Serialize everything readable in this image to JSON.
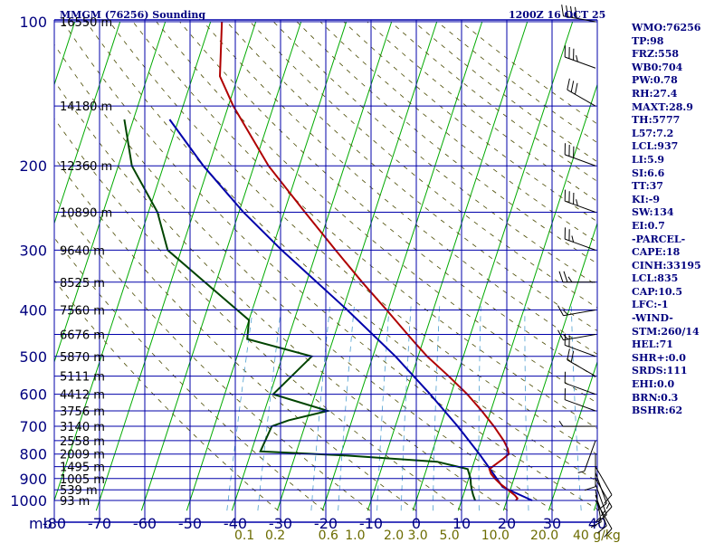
{
  "chart_data": {
    "type": "skew-t sounding",
    "title": "MMGM (76256) Sounding",
    "time_label": "1200Z 16 OCT 25",
    "pressure_ticks": [
      100,
      200,
      300,
      400,
      500,
      600,
      700,
      800,
      900,
      1000
    ],
    "temperature_ticks": [
      -80,
      -70,
      -60,
      -50,
      -40,
      -30,
      -20,
      -10,
      0,
      10,
      20,
      30,
      40
    ],
    "temperature_tick_labels": [
      "-80",
      "-70",
      "-60",
      "-50",
      "-40",
      "-30",
      "-20",
      "-10",
      "0",
      "10",
      "20",
      "30",
      "40"
    ],
    "axis_unit_label": "mb",
    "mixing_ratio_labels": [
      "0.1",
      "0.2",
      "0.6",
      "1.0",
      "2.0",
      "3.0",
      "5.0",
      "10.0",
      "20.0",
      "40 g/kg"
    ],
    "height_labels": [
      {
        "p": 100,
        "text": "16550 m"
      },
      {
        "p": 150,
        "text": "14180 m"
      },
      {
        "p": 200,
        "text": "12360 m"
      },
      {
        "p": 250,
        "text": "10890 m"
      },
      {
        "p": 300,
        "text": "9640 m"
      },
      {
        "p": 350,
        "text": "8525 m"
      },
      {
        "p": 400,
        "text": "7560 m"
      },
      {
        "p": 450,
        "text": "6676 m"
      },
      {
        "p": 500,
        "text": "5870 m"
      },
      {
        "p": 550,
        "text": "5111 m"
      },
      {
        "p": 600,
        "text": "4412 m"
      },
      {
        "p": 650,
        "text": "3756 m"
      },
      {
        "p": 700,
        "text": "3140 m"
      },
      {
        "p": 750,
        "text": "2558 m"
      },
      {
        "p": 800,
        "text": "2009 m"
      },
      {
        "p": 850,
        "text": "1495 m"
      },
      {
        "p": 900,
        "text": "1005 m"
      },
      {
        "p": 950,
        "text": "539 m"
      },
      {
        "p": 1000,
        "text": "93 m"
      }
    ],
    "temperature_profile": [
      {
        "p": 1000,
        "t": 22
      },
      {
        "p": 990,
        "t": 22.2
      },
      {
        "p": 975,
        "t": 21.4
      },
      {
        "p": 950,
        "t": 19.5
      },
      {
        "p": 925,
        "t": 17.5
      },
      {
        "p": 900,
        "t": 15.8
      },
      {
        "p": 880,
        "t": 14.6
      },
      {
        "p": 860,
        "t": 13.9
      },
      {
        "p": 850,
        "t": 14.4
      },
      {
        "p": 820,
        "t": 16.1
      },
      {
        "p": 800,
        "t": 17.1
      },
      {
        "p": 780,
        "t": 16.5
      },
      {
        "p": 750,
        "t": 15.0
      },
      {
        "p": 700,
        "t": 11.8
      },
      {
        "p": 650,
        "t": 8.0
      },
      {
        "p": 600,
        "t": 3.6
      },
      {
        "p": 550,
        "t": -1.8
      },
      {
        "p": 500,
        "t": -8.0
      },
      {
        "p": 470,
        "t": -11.5
      },
      {
        "p": 450,
        "t": -13.9
      },
      {
        "p": 400,
        "t": -20.3
      },
      {
        "p": 350,
        "t": -27.7
      },
      {
        "p": 300,
        "t": -35.9
      },
      {
        "p": 250,
        "t": -45.4
      },
      {
        "p": 200,
        "t": -56.8
      },
      {
        "p": 150,
        "t": -68.9
      },
      {
        "p": 130,
        "t": -74.0
      },
      {
        "p": 100,
        "t": -77.5
      }
    ],
    "dewpoint_profile": [
      {
        "p": 1000,
        "td": 13
      },
      {
        "p": 975,
        "td": 12.2
      },
      {
        "p": 950,
        "td": 11.5
      },
      {
        "p": 925,
        "td": 10.9
      },
      {
        "p": 900,
        "td": 10.4
      },
      {
        "p": 860,
        "td": 9.1
      },
      {
        "p": 830,
        "td": 1.8
      },
      {
        "p": 805,
        "td": -19.0
      },
      {
        "p": 790,
        "td": -38.0
      },
      {
        "p": 700,
        "td": -37.3
      },
      {
        "p": 680,
        "td": -34.0
      },
      {
        "p": 650,
        "td": -26.0
      },
      {
        "p": 600,
        "td": -39.3
      },
      {
        "p": 500,
        "td": -33.5
      },
      {
        "p": 460,
        "td": -49.0
      },
      {
        "p": 420,
        "td": -50.0
      },
      {
        "p": 300,
        "td": -73.0
      },
      {
        "p": 250,
        "td": -78.0
      },
      {
        "p": 200,
        "td": -87.0
      },
      {
        "p": 160,
        "td": -92.0
      }
    ],
    "parcel_profile": [
      {
        "p": 1000,
        "t": 25.6
      },
      {
        "p": 937,
        "t": 18.1
      },
      {
        "p": 900,
        "t": 16.2
      },
      {
        "p": 850,
        "t": 13.5
      },
      {
        "p": 800,
        "t": 10.6
      },
      {
        "p": 700,
        "t": 3.8
      },
      {
        "p": 600,
        "t": -4.6
      },
      {
        "p": 500,
        "t": -15.0
      },
      {
        "p": 400,
        "t": -29.0
      },
      {
        "p": 300,
        "t": -47.8
      },
      {
        "p": 250,
        "t": -59.0
      },
      {
        "p": 200,
        "t": -71.2
      },
      {
        "p": 160,
        "t": -82.0
      }
    ],
    "wind_profile": [
      {
        "p": 1000,
        "dir": 150,
        "spd": 10
      },
      {
        "p": 975,
        "dir": 160,
        "spd": 10
      },
      {
        "p": 950,
        "dir": 170,
        "spd": 15
      },
      {
        "p": 925,
        "dir": 160,
        "spd": 15
      },
      {
        "p": 900,
        "dir": 150,
        "spd": 15
      },
      {
        "p": 875,
        "dir": 160,
        "spd": 10
      },
      {
        "p": 850,
        "dir": 150,
        "spd": 10
      },
      {
        "p": 800,
        "dir": 180,
        "spd": 10
      },
      {
        "p": 750,
        "dir": 200,
        "spd": 5
      },
      {
        "p": 700,
        "dir": 270,
        "spd": 5
      },
      {
        "p": 650,
        "dir": 290,
        "spd": 10
      },
      {
        "p": 600,
        "dir": 290,
        "spd": 10
      },
      {
        "p": 550,
        "dir": 300,
        "spd": 20
      },
      {
        "p": 500,
        "dir": 290,
        "spd": 20
      },
      {
        "p": 450,
        "dir": 260,
        "spd": 15
      },
      {
        "p": 400,
        "dir": 260,
        "spd": 15
      },
      {
        "p": 350,
        "dir": 270,
        "spd": 25
      },
      {
        "p": 300,
        "dir": 290,
        "spd": 25
      },
      {
        "p": 250,
        "dir": 290,
        "spd": 35
      },
      {
        "p": 200,
        "dir": 290,
        "spd": 30
      },
      {
        "p": 150,
        "dir": 300,
        "spd": 30
      },
      {
        "p": 125,
        "dir": 290,
        "spd": 35
      },
      {
        "p": 100,
        "dir": 280,
        "spd": 40
      }
    ],
    "series_names": [
      "Temperature",
      "Dewpoint",
      "Parcel path"
    ],
    "xlim": [
      -80,
      40
    ],
    "ylim": [
      100,
      1050
    ]
  },
  "indices": [
    "WMO:76256",
    "TP:98",
    "FRZ:558",
    "WB0:704",
    "PW:0.78",
    "RH:27.4",
    "MAXT:28.9",
    "TH:5777",
    "L57:7.2",
    "LCL:937",
    "LI:5.9",
    "SI:6.6",
    "TT:37",
    "KI:-9",
    "SW:134",
    "EI:0.7",
    "-PARCEL-",
    "CAPE:18",
    "CINH:33195",
    "LCL:835",
    "CAP:10.5",
    "LFC:-1",
    "-WIND-",
    "STM:260/14",
    "HEL:71",
    "SHR+:0.0",
    "SRDS:111",
    "EHI:0.0",
    "BRN:0.3",
    "BSHR:62"
  ],
  "colors": {
    "grid": "#0000aa",
    "isotherm": "#00aa00",
    "dry_adiabat": "#4a4a00",
    "mixing_ratio": "#4f9fd0",
    "temperature": "#b00000",
    "dewpoint": "#004400",
    "parcel": "#0000aa",
    "text": "#00007f"
  }
}
